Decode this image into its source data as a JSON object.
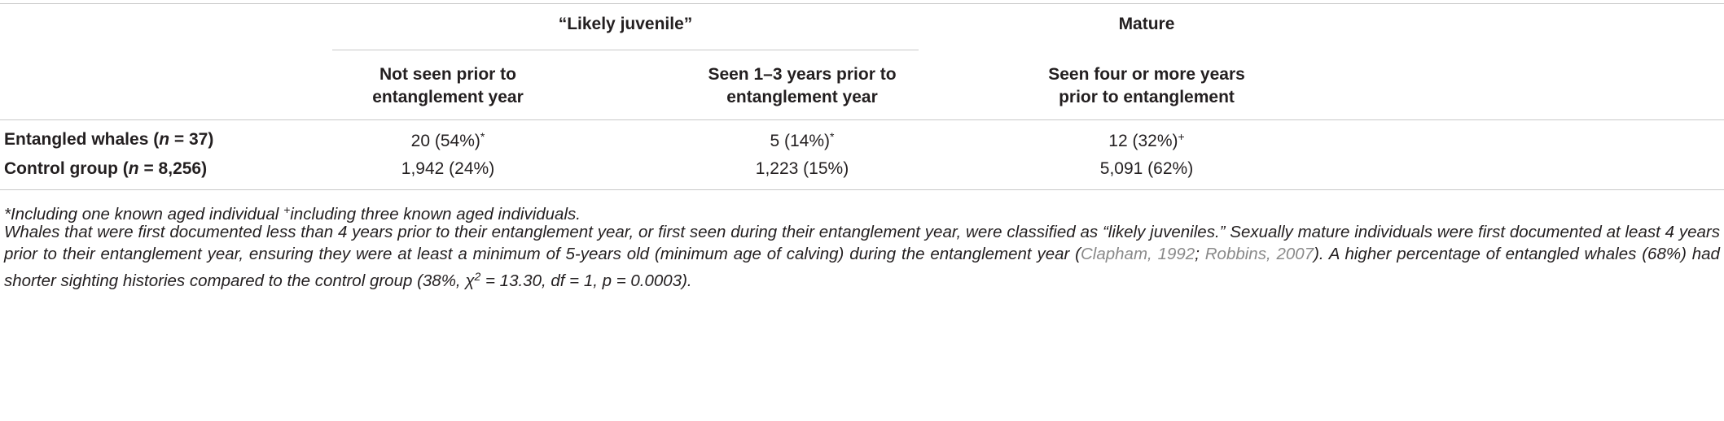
{
  "table": {
    "group_headers": [
      "“Likely juvenile”",
      "Mature"
    ],
    "columns": [
      [
        "Not seen prior to",
        "entanglement year"
      ],
      [
        "Seen 1–3 years prior to",
        "entanglement year"
      ],
      [
        "Seen four or more years",
        "prior to entanglement"
      ]
    ],
    "rows": [
      {
        "label": [
          "Entangled whales (",
          "n",
          " = 37)"
        ],
        "cells": [
          {
            "text": "20 (54%)",
            "sup": "*"
          },
          {
            "text": "5 (14%)",
            "sup": "*"
          },
          {
            "text": "12 (32%)",
            "sup": "+"
          }
        ]
      },
      {
        "label": [
          "Control group (",
          "n",
          " = 8,256)"
        ],
        "cells": [
          {
            "text": "1,942 (24%)"
          },
          {
            "text": "1,223 (15%)"
          },
          {
            "text": "5,091 (62%)"
          }
        ]
      }
    ]
  },
  "notes": {
    "footnote": [
      "*Including one known aged individual ",
      "+",
      "including three known aged individuals."
    ],
    "paragraph": [
      "Whales that were first documented less than 4 years prior to their entanglement year, or first seen during their entanglement year, were classified as “likely juveniles.” Sexually mature individuals were first documented at least 4 years prior to their entanglement year, ensuring they were at least a minimum of 5-years old (minimum age of calving) during the entanglement year (",
      "Clapham, 1992",
      "; ",
      "Robbins, 2007",
      "). A higher percentage of entangled whales (68%) had shorter sighting histories compared to the control group (38%, χ",
      "2",
      " = 13.30, df = 1, p = 0.0003)."
    ]
  }
}
